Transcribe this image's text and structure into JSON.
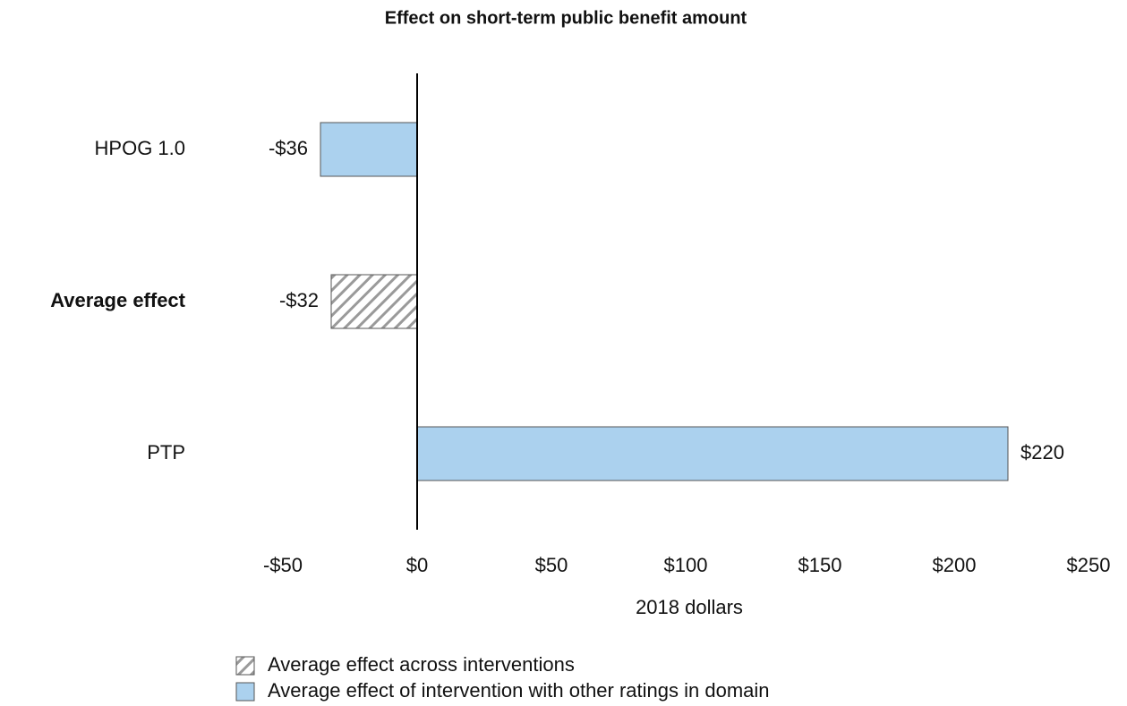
{
  "chart_data": {
    "type": "bar",
    "orientation": "horizontal",
    "title": "Effect on short-term public benefit amount",
    "x_label": "2018 dollars",
    "categories": [
      "HPOG 1.0",
      "Average effect",
      "PTP"
    ],
    "series": [
      {
        "name": "Average effect across interventions",
        "color": "#9a9a9a",
        "pattern": "hatch",
        "values": [
          null,
          -32,
          null
        ],
        "value_labels": [
          null,
          "-$32",
          null
        ]
      },
      {
        "name": "Average effect of intervention with other ratings in domain",
        "color": "#abd1ee",
        "values": [
          -36,
          null,
          220
        ],
        "value_labels": [
          "-$36",
          null,
          "$220"
        ]
      }
    ],
    "xlim": [
      -50,
      250
    ],
    "xticks": [
      {
        "value": -50,
        "label": "-$50"
      },
      {
        "value": 0,
        "label": "$0"
      },
      {
        "value": 50,
        "label": "$50"
      },
      {
        "value": 100,
        "label": "$100"
      },
      {
        "value": 150,
        "label": "$150"
      },
      {
        "value": 200,
        "label": "$200"
      },
      {
        "value": 250,
        "label": "$250"
      }
    ],
    "grid": false,
    "legend": "bottom"
  }
}
